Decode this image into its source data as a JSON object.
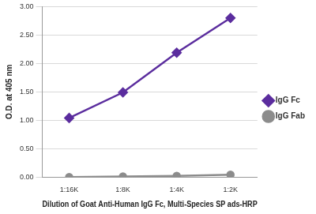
{
  "chart_data": {
    "type": "line",
    "x_label": "Dilution of Goat Anti-Human IgG Fc, Multi-Species SP ads-HRP",
    "y_label": "O.D. at 405 nm",
    "categories": [
      "1:16K",
      "1:8K",
      "1:4K",
      "1:2K"
    ],
    "series": [
      {
        "name": "IgG Fc",
        "color": "#5b2d9e",
        "marker": "diamond",
        "values": [
          1.04,
          1.49,
          2.19,
          2.8
        ]
      },
      {
        "name": "IgG Fab",
        "color": "#8c8c8c",
        "marker": "circle",
        "values": [
          0.0,
          0.01,
          0.02,
          0.04
        ]
      }
    ],
    "ylim": [
      0,
      3
    ],
    "yticks": [
      {
        "value": 0,
        "label": "0.00"
      },
      {
        "value": 0.5,
        "label": "0.50"
      },
      {
        "value": 1,
        "label": "1.00"
      },
      {
        "value": 1.5,
        "label": "1.50"
      },
      {
        "value": 2,
        "label": "2.00"
      },
      {
        "value": 2.5,
        "label": "2.50"
      },
      {
        "value": 3,
        "label": "3.00"
      }
    ],
    "grid": true,
    "legend": "right"
  }
}
